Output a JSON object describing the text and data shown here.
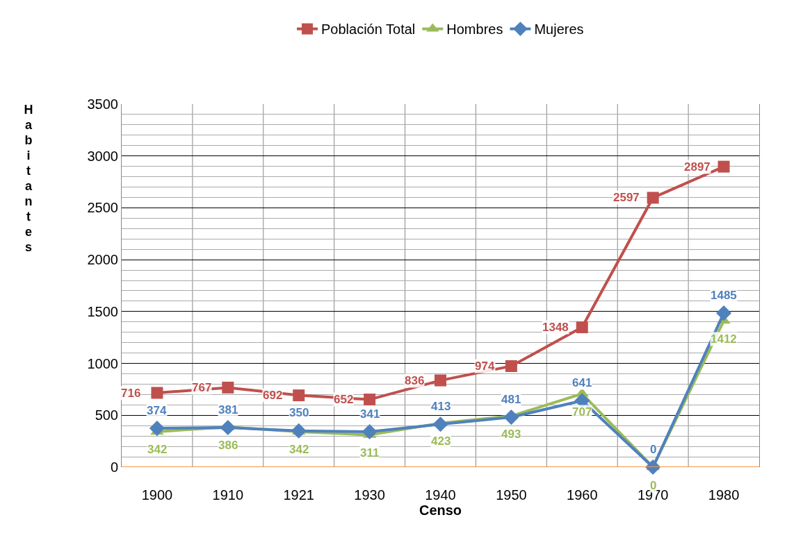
{
  "chart_data": {
    "type": "line",
    "xlabel": "Censo",
    "ylabel": "Habitantes",
    "categories": [
      "1900",
      "1910",
      "1921",
      "1930",
      "1940",
      "1950",
      "1960",
      "1970",
      "1980"
    ],
    "series": [
      {
        "name": "Población Total",
        "color": "#c0504d",
        "marker": "square",
        "values": [
          716,
          767,
          692,
          652,
          836,
          974,
          1348,
          2597,
          2897
        ]
      },
      {
        "name": "Hombres",
        "color": "#9bbb59",
        "marker": "triangle",
        "values": [
          342,
          386,
          342,
          311,
          423,
          493,
          707,
          0,
          1412
        ]
      },
      {
        "name": "Mujeres",
        "color": "#4f81bd",
        "marker": "diamond",
        "values": [
          374,
          381,
          350,
          341,
          413,
          481,
          641,
          0,
          1485
        ]
      }
    ],
    "ylim": [
      0,
      3500
    ],
    "yticks": [
      0,
      500,
      1000,
      1500,
      2000,
      2500,
      3000,
      3500
    ],
    "grid": true,
    "legend": "top",
    "data_labels": true,
    "line_style": "solid"
  }
}
